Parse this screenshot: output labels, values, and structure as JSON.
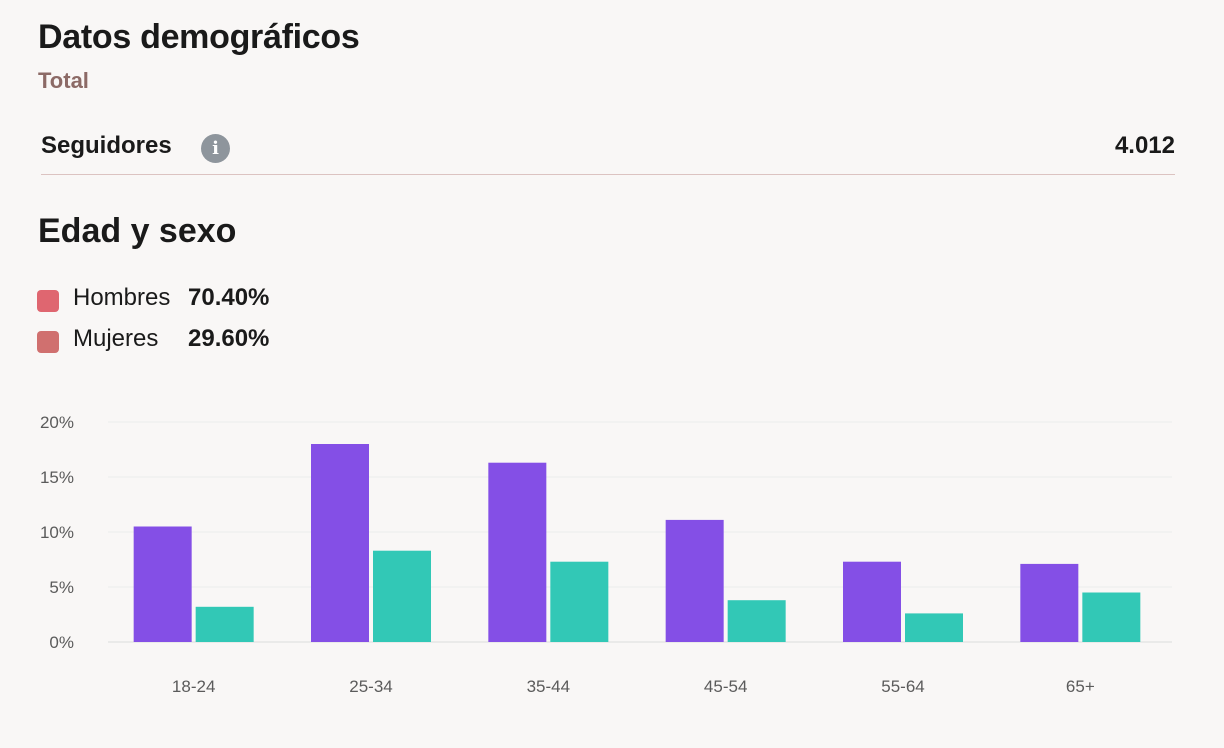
{
  "header": {
    "title": "Datos demográficos",
    "subtitle": "Total"
  },
  "metric": {
    "label": "Seguidores",
    "info_icon": "info-icon",
    "info_glyph": "i",
    "value": "4.012"
  },
  "section": {
    "title": "Edad y sexo"
  },
  "legend": [
    {
      "label": "Hombres",
      "value": "70.40%",
      "color": "#df6670"
    },
    {
      "label": "Mujeres",
      "value": "29.60%",
      "color": "#d0706f"
    }
  ],
  "chart_data": {
    "type": "bar",
    "categories": [
      "18-24",
      "25-34",
      "35-44",
      "45-54",
      "55-64",
      "65+"
    ],
    "series": [
      {
        "values": [
          10.5,
          18.0,
          16.3,
          11.1,
          7.3,
          7.1
        ],
        "color": "#844fe6"
      },
      {
        "values": [
          3.2,
          8.3,
          7.3,
          3.8,
          2.6,
          4.5
        ],
        "color": "#32c8b6"
      }
    ],
    "y_ticks": [
      "0%",
      "5%",
      "10%",
      "15%",
      "20%"
    ],
    "ylim": [
      0,
      20
    ],
    "grid": true
  }
}
